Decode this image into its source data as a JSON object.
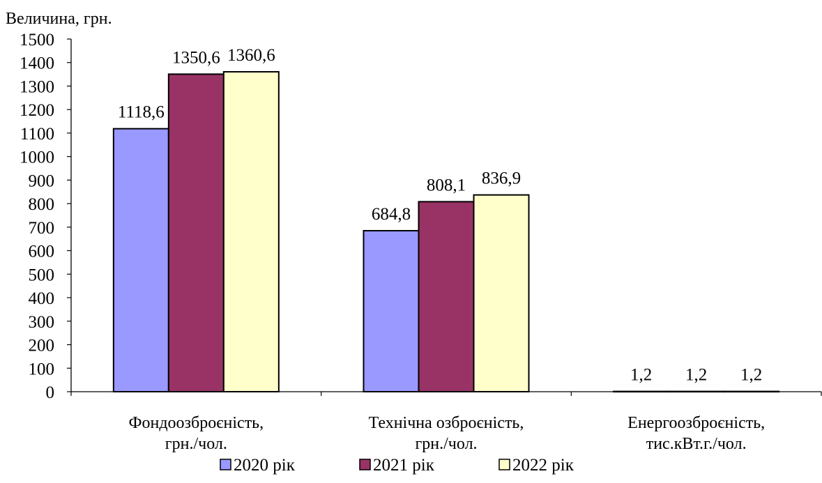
{
  "chart_data": {
    "type": "bar",
    "ylabel": "Величина, грн.",
    "ylim": [
      0,
      1500
    ],
    "ytick_step": 100,
    "yticks": [
      "0",
      "100",
      "200",
      "300",
      "400",
      "500",
      "600",
      "700",
      "800",
      "900",
      "1000",
      "1100",
      "1200",
      "1300",
      "1400",
      "1500"
    ],
    "categories": [
      [
        "Фондоозброєність,",
        "грн./чол."
      ],
      [
        "Технічна озброєність,",
        "грн./чол."
      ],
      [
        "Енергоозброєність,",
        "тис.кВт.г./чол."
      ]
    ],
    "series": [
      {
        "name": "2020 рік",
        "color": "#9999ff",
        "values": [
          1118.6,
          684.8,
          1.2
        ],
        "labels": [
          "1118,6",
          "684,8",
          "1,2"
        ]
      },
      {
        "name": "2021 рік",
        "color": "#993366",
        "values": [
          1350.6,
          808.1,
          1.2
        ],
        "labels": [
          "1350,6",
          "808,1",
          "1,2"
        ]
      },
      {
        "name": "2022 рік",
        "color": "#ffffcc",
        "values": [
          1360.6,
          836.9,
          1.2
        ],
        "labels": [
          "1360,6",
          "836,9",
          "1,2"
        ]
      }
    ],
    "grid": false,
    "legend_position": "bottom"
  }
}
